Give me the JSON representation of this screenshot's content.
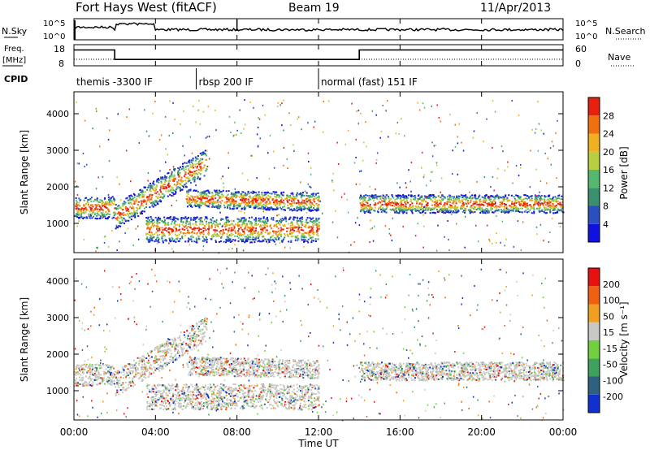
{
  "header": {
    "station": "Fort Hays West (fitACF)",
    "beam": "Beam 19",
    "date": "11/Apr/2013"
  },
  "panels": {
    "nsky": {
      "left_label": "N.Sky",
      "right_label": "N.Search",
      "left_ticks": [
        "10^5",
        "10^0"
      ],
      "right_ticks": [
        "10^5",
        "10^0"
      ]
    },
    "freq": {
      "left_label_1": "Freq.",
      "left_label_2": "[MHz]",
      "right_label": "Nave",
      "left_ticks": [
        "18",
        "8"
      ],
      "right_ticks": [
        "60",
        "0"
      ],
      "freq_steps": [
        {
          "from_hour": 0.0,
          "to_hour": 2.0,
          "value_mhz": 15.5
        },
        {
          "from_hour": 2.0,
          "to_hour": 14.0,
          "value_mhz": 11.0
        },
        {
          "from_hour": 14.0,
          "to_hour": 24.0,
          "value_mhz": 15.5
        }
      ]
    },
    "cpid": {
      "label": "CPID",
      "segments": [
        {
          "text": "themis -3300 IF",
          "from_hour": 0.0,
          "to_hour": 6.0
        },
        {
          "text": "rbsp 200 IF",
          "from_hour": 6.0,
          "to_hour": 12.0
        },
        {
          "text": "normal (fast) 151 IF",
          "from_hour": 12.0,
          "to_hour": 24.0
        }
      ]
    }
  },
  "chart_data": [
    {
      "type": "heatmap",
      "name": "power",
      "ylabel": "Slant Range [km]",
      "y_ticks": [
        1000,
        2000,
        3000,
        4000
      ],
      "ylim": [
        200,
        4600
      ],
      "colorbar_label": "Power [dB]",
      "colorbar_ticks": [
        "28",
        "24",
        "20",
        "16",
        "12",
        "8",
        "4"
      ],
      "colorbar_colors": [
        "#1010e0",
        "#2a50c0",
        "#3a8f6c",
        "#56b86e",
        "#b8d040",
        "#f0b020",
        "#f07010",
        "#e82010"
      ],
      "bands": [
        {
          "from_hour": 0.0,
          "to_hour": 2.0,
          "center_km": 1450,
          "width_km": 300
        },
        {
          "from_hour": 2.0,
          "to_hour": 6.5,
          "center_km_start": 1200,
          "center_km_end": 2700,
          "width_km": 350
        },
        {
          "from_hour": 3.5,
          "to_hour": 12.0,
          "center_km": 850,
          "width_km": 350
        },
        {
          "from_hour": 5.5,
          "to_hour": 12.0,
          "center_km_start": 1700,
          "center_km_end": 1600,
          "width_km": 250
        },
        {
          "from_hour": 14.0,
          "to_hour": 24.0,
          "center_km": 1550,
          "width_km": 250
        }
      ]
    },
    {
      "type": "heatmap",
      "name": "velocity",
      "ylabel": "Slant Range [km]",
      "y_ticks": [
        1000,
        2000,
        3000,
        4000
      ],
      "ylim": [
        200,
        4600
      ],
      "colorbar_label": "Velocity [m s⁻¹]",
      "colorbar_ticks": [
        "200",
        "100",
        "50",
        "15",
        "-15",
        "-50",
        "-100",
        "-200"
      ],
      "colorbar_colors": [
        "#1030d0",
        "#306080",
        "#40a060",
        "#70d040",
        "#c8c8c4",
        "#f0a020",
        "#f06010",
        "#e81010"
      ]
    }
  ],
  "x_axis": {
    "label": "Time UT",
    "ticks": [
      "00:00",
      "04:00",
      "08:00",
      "12:00",
      "16:00",
      "20:00",
      "00:00"
    ],
    "range_hours": [
      0,
      24
    ]
  }
}
